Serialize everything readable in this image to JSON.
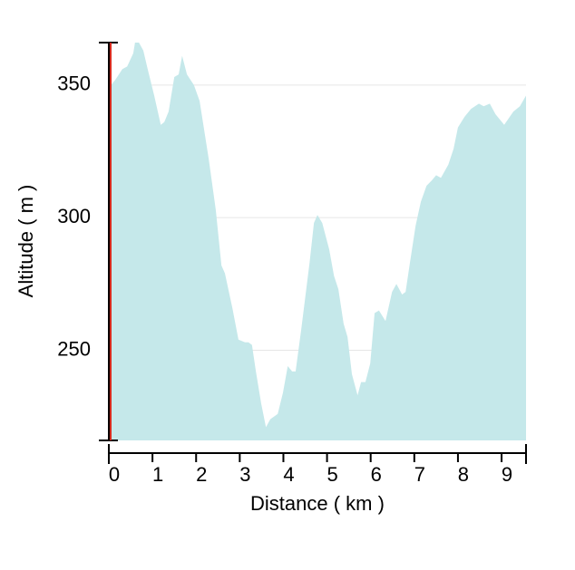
{
  "chart_data": {
    "type": "area",
    "x_label": "Distance ( km )",
    "y_label": "Altitude ( m )",
    "x": [
      0,
      0.15,
      0.31,
      0.42,
      0.56,
      0.6,
      0.69,
      0.79,
      0.89,
      1.04,
      1.19,
      1.27,
      1.37,
      1.5,
      1.6,
      1.68,
      1.79,
      1.95,
      2.08,
      2.29,
      2.45,
      2.58,
      2.66,
      2.83,
      2.97,
      3.12,
      3.2,
      3.28,
      3.37,
      3.49,
      3.6,
      3.7,
      3.87,
      3.99,
      4.1,
      4.2,
      4.28,
      4.41,
      4.6,
      4.7,
      4.78,
      4.89,
      5.05,
      5.16,
      5.26,
      5.38,
      5.47,
      5.57,
      5.7,
      5.78,
      5.88,
      5.99,
      6.09,
      6.19,
      6.34,
      6.49,
      6.59,
      6.72,
      6.8,
      6.9,
      7.03,
      7.15,
      7.28,
      7.4,
      7.5,
      7.61,
      7.78,
      7.9,
      8.0,
      8.15,
      8.3,
      8.48,
      8.59,
      8.73,
      8.86,
      9.06,
      9.27,
      9.42,
      9.56
    ],
    "values": [
      349,
      352,
      356,
      357,
      362,
      366,
      366,
      363,
      356,
      346,
      335,
      336,
      340,
      353,
      354,
      361,
      354,
      350,
      344,
      322,
      303,
      282,
      279,
      266,
      254,
      253,
      253,
      252,
      242,
      230,
      221,
      224,
      226,
      234,
      244,
      242,
      242,
      258,
      283,
      298,
      301,
      298,
      288,
      278,
      273,
      260,
      255,
      241,
      233,
      238,
      238,
      245,
      264,
      265,
      261,
      272,
      275,
      271,
      272,
      283,
      297,
      306,
      312,
      314,
      316,
      315,
      320,
      326,
      334,
      338,
      341,
      343,
      342,
      343,
      339,
      335,
      340,
      342,
      346
    ],
    "color": "#c5e8ea",
    "cursor": 0,
    "cursor_color": "#d62a1e",
    "xlim": [
      0,
      9.56
    ],
    "xticks": [
      0,
      1,
      2,
      3,
      4,
      5,
      6,
      7,
      8,
      9
    ],
    "ylim": [
      216,
      366
    ],
    "yticks": [
      250,
      300,
      350
    ],
    "grid": true
  }
}
